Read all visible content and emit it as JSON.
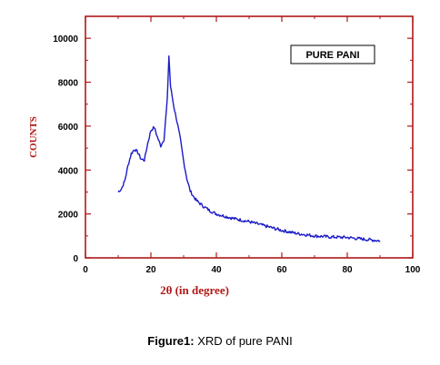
{
  "chart_data": {
    "type": "line",
    "ylabel": "COUNTS",
    "xlabel": "2θ (in degree)",
    "legend": "PURE PANI",
    "legend_position": "top-right",
    "xlim": [
      0,
      100
    ],
    "ylim": [
      0,
      11000
    ],
    "x_ticks": [
      0,
      20,
      40,
      60,
      80,
      100
    ],
    "y_ticks": [
      0,
      2000,
      4000,
      6000,
      8000,
      10000
    ],
    "grid": false,
    "series": [
      {
        "name": "PURE PANI",
        "color": "#1b1bc8",
        "points": [
          [
            10,
            3000
          ],
          [
            11,
            3150
          ],
          [
            12,
            3500
          ],
          [
            13,
            4200
          ],
          [
            14,
            4750
          ],
          [
            15,
            4950
          ],
          [
            16,
            4800
          ],
          [
            17,
            4500
          ],
          [
            18,
            4450
          ],
          [
            19,
            5200
          ],
          [
            20,
            5800
          ],
          [
            21,
            5950
          ],
          [
            22,
            5500
          ],
          [
            23,
            5100
          ],
          [
            24,
            5400
          ],
          [
            25,
            7200
          ],
          [
            25.5,
            9200
          ],
          [
            26,
            7800
          ],
          [
            27,
            6900
          ],
          [
            28,
            6200
          ],
          [
            29,
            5400
          ],
          [
            30,
            4400
          ],
          [
            31,
            3600
          ],
          [
            32,
            3050
          ],
          [
            33,
            2800
          ],
          [
            34,
            2600
          ],
          [
            36,
            2350
          ],
          [
            38,
            2150
          ],
          [
            40,
            2000
          ],
          [
            45,
            1800
          ],
          [
            50,
            1650
          ],
          [
            55,
            1450
          ],
          [
            60,
            1250
          ],
          [
            65,
            1100
          ],
          [
            70,
            1000
          ],
          [
            75,
            950
          ],
          [
            80,
            930
          ],
          [
            85,
            850
          ],
          [
            90,
            780
          ]
        ]
      }
    ]
  },
  "caption": {
    "label": "Figure1:",
    "text": " XRD of pure PANI"
  }
}
